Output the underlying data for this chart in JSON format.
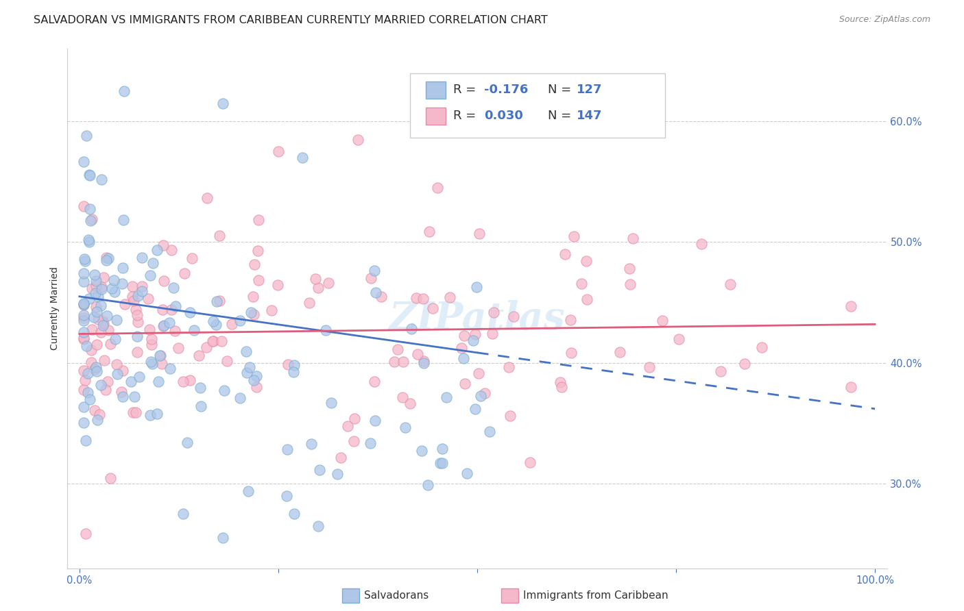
{
  "title": "SALVADORAN VS IMMIGRANTS FROM CARIBBEAN CURRENTLY MARRIED CORRELATION CHART",
  "source": "Source: ZipAtlas.com",
  "ylabel": "Currently Married",
  "yticks": [
    0.3,
    0.4,
    0.5,
    0.6
  ],
  "ytick_labels": [
    "30.0%",
    "40.0%",
    "50.0%",
    "60.0%"
  ],
  "xlim": [
    0.0,
    1.0
  ],
  "ylim": [
    0.23,
    0.66
  ],
  "legend_r1": "R = -0.176",
  "legend_n1": "N = 127",
  "legend_r2": "R = 0.030",
  "legend_n2": "N = 147",
  "color_blue_fill": "#aec6e8",
  "color_blue_edge": "#7aafd4",
  "color_pink_fill": "#f5b8ca",
  "color_pink_edge": "#e88aa4",
  "line_color_blue": "#4472c4",
  "line_color_pink": "#e05a7a",
  "watermark": "ZIPatlas",
  "title_fontsize": 11.5,
  "label_fontsize": 10,
  "tick_fontsize": 10.5,
  "blue_line_x0": 0.0,
  "blue_line_y0": 0.455,
  "blue_line_x1": 1.0,
  "blue_line_y1": 0.362,
  "blue_line_solid_end": 0.5,
  "pink_line_x0": 0.0,
  "pink_line_y0": 0.424,
  "pink_line_x1": 1.0,
  "pink_line_y1": 0.432
}
